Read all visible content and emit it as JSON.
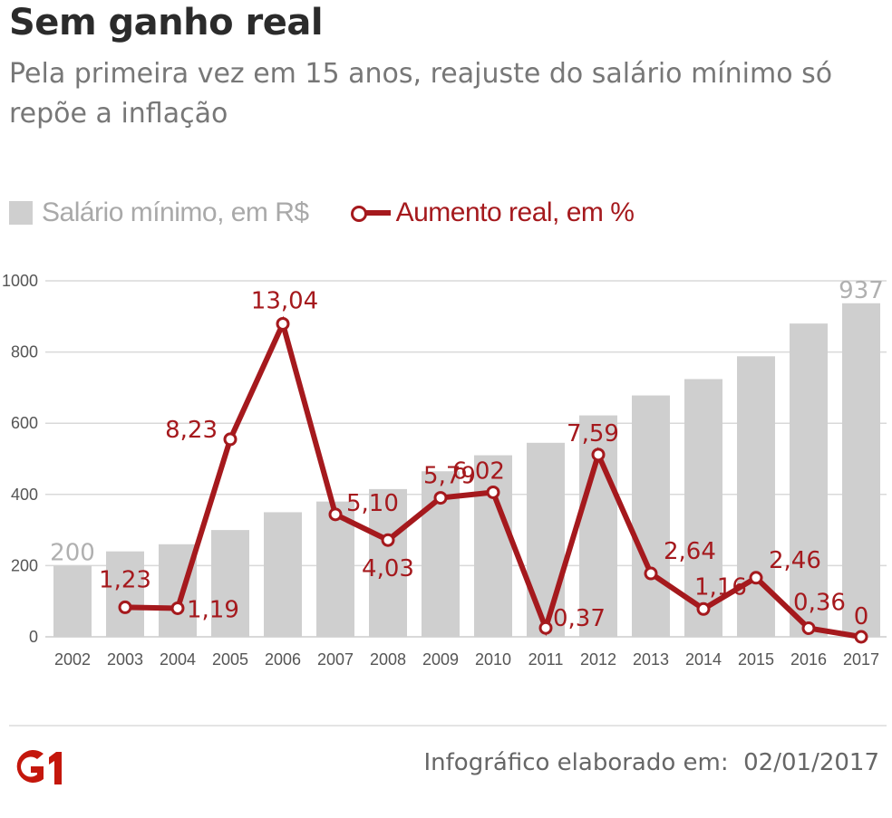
{
  "header": {
    "title": "Sem ganho real",
    "subtitle": "Pela primeira vez em 15 anos,  reajuste do salário mínimo só repõe a inflação"
  },
  "legend": {
    "bars_label": "Salário mínimo, em R$",
    "line_label": "Aumento real, em %"
  },
  "colors": {
    "bar": "#cfcfcf",
    "line": "#a5191d",
    "grid": "#d9d9d9"
  },
  "chart_data": {
    "type": "bar",
    "categories": [
      "2002",
      "2003",
      "2004",
      "2005",
      "2006",
      "2007",
      "2008",
      "2009",
      "2010",
      "2011",
      "2012",
      "2013",
      "2014",
      "2015",
      "2016",
      "2017"
    ],
    "series": [
      {
        "name": "Salário mínimo, em R$",
        "type": "bar",
        "values": [
          200,
          240,
          260,
          300,
          350,
          380,
          415,
          465,
          510,
          545,
          622,
          678,
          724,
          788,
          880,
          937
        ],
        "labels": [
          "200",
          "",
          "",
          "",
          "",
          "",
          "",
          "",
          "",
          "",
          "",
          "",
          "",
          "",
          "",
          "937"
        ]
      },
      {
        "name": "Aumento real, em %",
        "type": "line",
        "values": [
          null,
          1.23,
          1.19,
          8.23,
          13.04,
          5.1,
          4.03,
          5.79,
          6.02,
          0.37,
          7.59,
          2.64,
          1.16,
          2.46,
          0.36,
          0
        ],
        "labels": [
          "",
          "1,23",
          "1,19",
          "8,23",
          "13,04",
          "5,10",
          "4,03",
          "5,79",
          "6,02",
          "0,37",
          "7,59",
          "2,64",
          "1,16",
          "2,46",
          "0,36",
          "0"
        ]
      }
    ],
    "y_ticks": [
      "0",
      "200",
      "400",
      "600",
      "800",
      "1000"
    ],
    "ylim": [
      0,
      1000
    ],
    "grid": true
  },
  "footer": {
    "logo": "G1",
    "credit": "Infográfico elaborado em:  02/01/2017"
  }
}
